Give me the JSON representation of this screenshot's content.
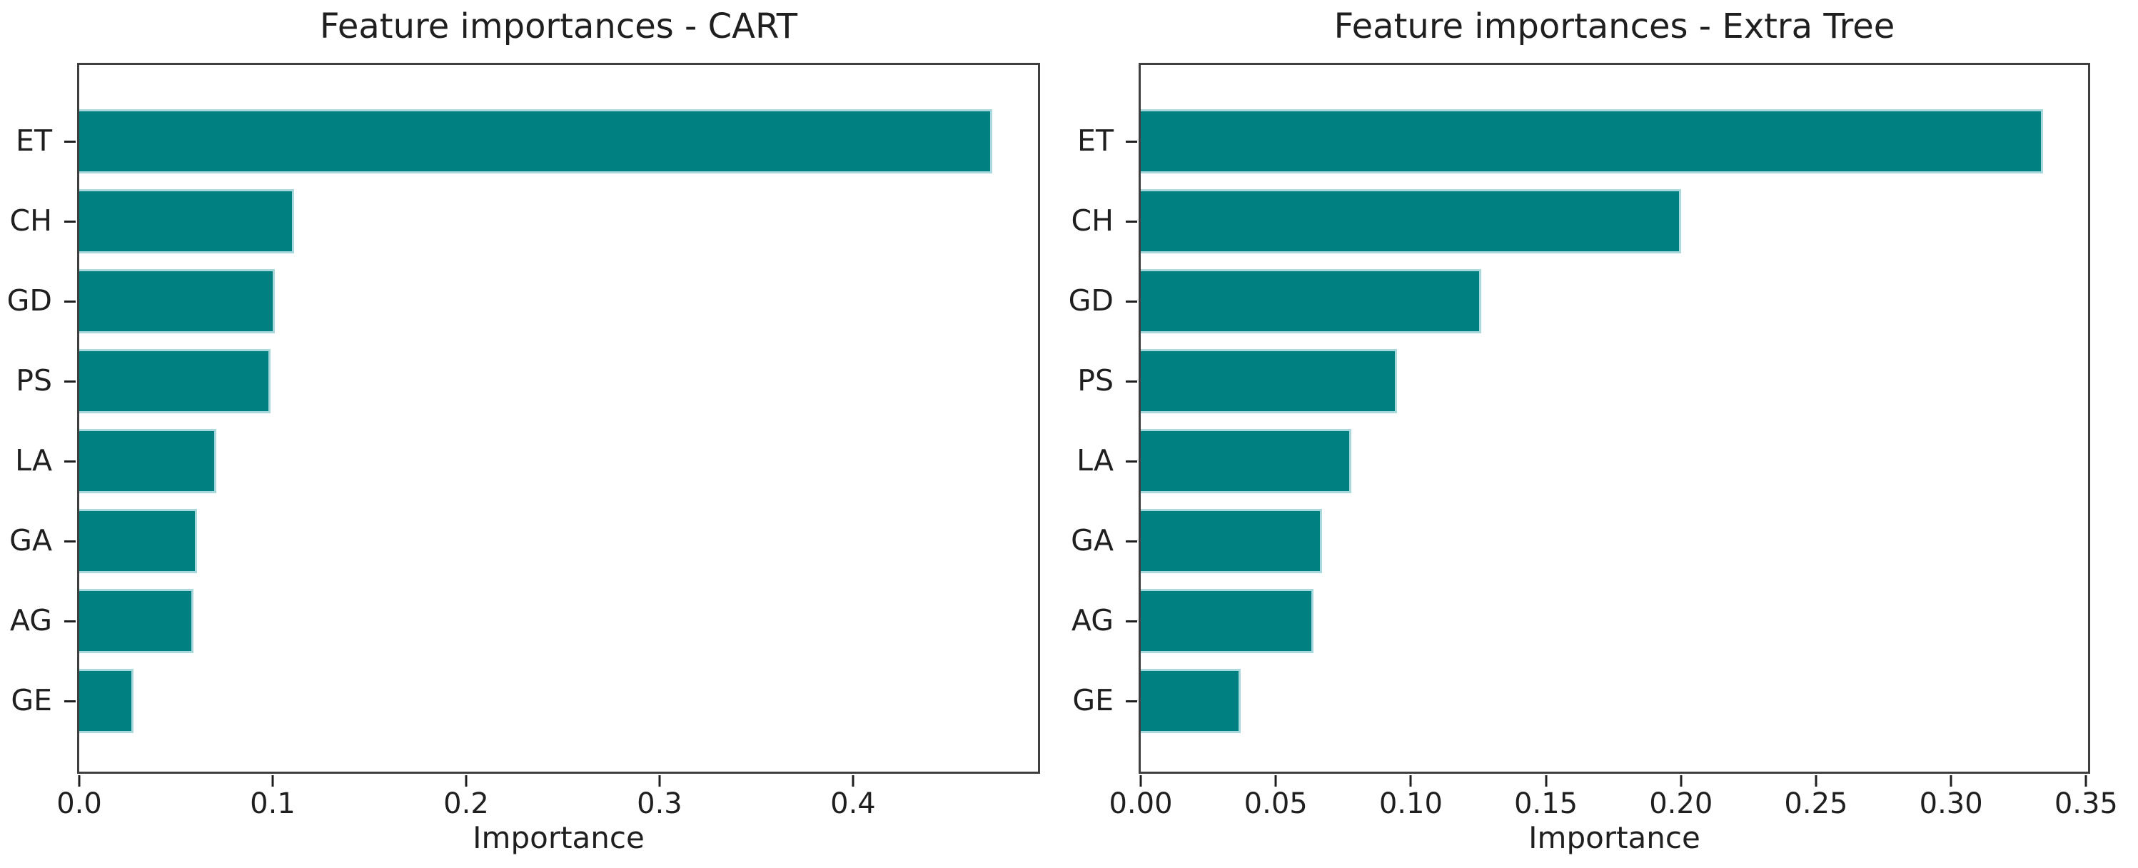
{
  "figure": {
    "background_color": "#ffffff",
    "bar_color": "#008080",
    "bar_edge_color": "#a9d9dc",
    "axis_color": "#3f3f3f",
    "text_color": "#1f1f1f"
  },
  "chart_data": [
    {
      "type": "bar",
      "orientation": "horizontal",
      "title": "Feature importances - CART",
      "xlabel": "Importance",
      "ylabel": "",
      "categories": [
        "ET",
        "CH",
        "GD",
        "PS",
        "LA",
        "GA",
        "AG",
        "GE"
      ],
      "values": [
        0.472,
        0.111,
        0.101,
        0.099,
        0.071,
        0.061,
        0.059,
        0.028
      ],
      "xlim": [
        0,
        0.4956
      ],
      "xticks": [
        0.0,
        0.1,
        0.2,
        0.3,
        0.4
      ],
      "xtick_labels": [
        "0.0",
        "0.1",
        "0.2",
        "0.3",
        "0.4"
      ],
      "grid": false,
      "legend": null
    },
    {
      "type": "bar",
      "orientation": "horizontal",
      "title": "Feature importances - Extra Tree",
      "xlabel": "Importance",
      "ylabel": "",
      "categories": [
        "ET",
        "CH",
        "GD",
        "PS",
        "LA",
        "GA",
        "AG",
        "GE"
      ],
      "values": [
        0.334,
        0.2,
        0.126,
        0.095,
        0.078,
        0.067,
        0.064,
        0.037
      ],
      "xlim": [
        0,
        0.3507
      ],
      "xticks": [
        0.0,
        0.05,
        0.1,
        0.15,
        0.2,
        0.25,
        0.3,
        0.35
      ],
      "xtick_labels": [
        "0.00",
        "0.05",
        "0.10",
        "0.15",
        "0.20",
        "0.25",
        "0.30",
        "0.35"
      ],
      "grid": false,
      "legend": null
    }
  ]
}
